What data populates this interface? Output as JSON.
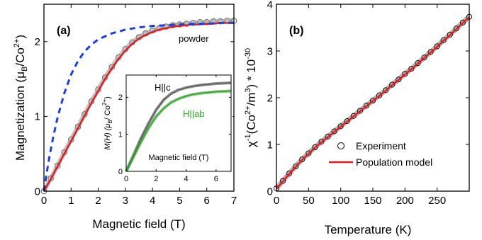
{
  "chart_data": [
    {
      "type": "line",
      "panel_label": "(a)",
      "xlabel": "Magnetic field (T)",
      "ylabel_main": "Magnetization (μ",
      "ylabel_sub1": "B",
      "ylabel_mid": "/Co",
      "ylabel_sup": "2+",
      "ylabel_end": ")",
      "annotation": "powder",
      "xlim": [
        0,
        7
      ],
      "ylim": [
        0,
        2.5
      ],
      "xticks": [
        0,
        1,
        2,
        3,
        4,
        5,
        6,
        7
      ],
      "yticks": [
        0,
        1,
        2
      ],
      "colors": {
        "experiment": "#555555",
        "model": "#e41a1c",
        "dashed": "#1f3fdc"
      },
      "series": [
        {
          "style": "open-circles",
          "x": [
            0,
            0.25,
            0.5,
            0.75,
            1.0,
            1.25,
            1.5,
            1.75,
            2.0,
            2.25,
            2.5,
            2.75,
            3.0,
            3.25,
            3.5,
            3.75,
            4.0,
            4.25,
            4.5,
            4.75,
            5.0,
            5.25,
            5.5,
            5.75,
            6.0,
            6.25,
            6.5,
            6.75,
            7.0
          ],
          "y": [
            0.0,
            0.17,
            0.34,
            0.52,
            0.69,
            0.86,
            1.03,
            1.2,
            1.36,
            1.52,
            1.66,
            1.79,
            1.9,
            1.99,
            2.06,
            2.11,
            2.15,
            2.18,
            2.2,
            2.22,
            2.23,
            2.24,
            2.25,
            2.26,
            2.26,
            2.27,
            2.27,
            2.28,
            2.28
          ]
        },
        {
          "style": "solid-red",
          "x": [
            0,
            0.25,
            0.5,
            0.75,
            1.0,
            1.25,
            1.5,
            1.75,
            2.0,
            2.25,
            2.5,
            2.75,
            3.0,
            3.25,
            3.5,
            3.75,
            4.0,
            4.25,
            4.5,
            4.75,
            5.0,
            5.25,
            5.5,
            5.75,
            6.0,
            6.25,
            6.5,
            6.75,
            7.0
          ],
          "y": [
            0.0,
            0.16,
            0.33,
            0.5,
            0.67,
            0.84,
            1.01,
            1.18,
            1.34,
            1.5,
            1.64,
            1.77,
            1.88,
            1.97,
            2.04,
            2.09,
            2.13,
            2.16,
            2.18,
            2.2,
            2.21,
            2.22,
            2.23,
            2.23,
            2.24,
            2.24,
            2.25,
            2.25,
            2.25
          ]
        },
        {
          "style": "dashed-blue",
          "x": [
            0,
            0.1,
            0.2,
            0.35,
            0.5,
            0.75,
            1.0,
            1.25,
            1.5,
            1.75,
            2.0,
            2.5,
            3.0,
            3.5,
            4.0,
            4.5,
            5.0,
            5.5,
            6.0,
            6.5,
            7.0
          ],
          "y": [
            0.0,
            0.24,
            0.46,
            0.74,
            0.98,
            1.31,
            1.56,
            1.74,
            1.87,
            1.96,
            2.03,
            2.11,
            2.16,
            2.19,
            2.21,
            2.22,
            2.23,
            2.24,
            2.24,
            2.25,
            2.25
          ]
        }
      ]
    },
    {
      "type": "line",
      "panel_label": "inset",
      "xlabel": "Magnetic field (T)",
      "ylabel_main": "M(H) (μ",
      "ylabel_sub1": "B",
      "ylabel_mid": "/ Co",
      "ylabel_sup": "2+",
      "ylabel_end": ")",
      "xlim": [
        0,
        7
      ],
      "ylim": [
        0,
        2.6
      ],
      "xticks": [
        0,
        2,
        4,
        6
      ],
      "yticks": [
        0,
        1,
        2
      ],
      "series": [
        {
          "name": "H||c",
          "color": "#555555",
          "x": [
            0,
            0.5,
            1.0,
            1.5,
            2.0,
            2.5,
            3.0,
            3.5,
            4.0,
            4.5,
            5.0,
            5.5,
            6.0,
            6.5,
            7.0
          ],
          "y": [
            0.0,
            0.45,
            0.9,
            1.3,
            1.66,
            1.93,
            2.1,
            2.2,
            2.26,
            2.3,
            2.33,
            2.35,
            2.37,
            2.38,
            2.39
          ]
        },
        {
          "name": "H||ab",
          "color": "#33a02c",
          "x": [
            0,
            0.5,
            1.0,
            1.5,
            2.0,
            2.5,
            3.0,
            3.5,
            4.0,
            4.5,
            5.0,
            5.5,
            6.0,
            6.5,
            7.0
          ],
          "y": [
            0.0,
            0.4,
            0.8,
            1.17,
            1.48,
            1.7,
            1.86,
            1.96,
            2.03,
            2.08,
            2.11,
            2.13,
            2.15,
            2.16,
            2.17
          ]
        }
      ]
    },
    {
      "type": "scatter",
      "panel_label": "(b)",
      "xlabel": "Temperature (K)",
      "ylabel_chi": "χ",
      "ylabel_sup1": "-1",
      "ylabel_mid": "(Co",
      "ylabel_sup2": "2+",
      "ylabel_mid2": "/m",
      "ylabel_sup3": "3",
      "ylabel_end": ") * 10",
      "ylabel_sup4": "-30",
      "xlim": [
        0,
        300
      ],
      "ylim": [
        0,
        4
      ],
      "xticks": [
        0,
        50,
        100,
        150,
        200,
        250
      ],
      "yticks": [
        0,
        1,
        2,
        3,
        4
      ],
      "legend": [
        "Experiment",
        "Population model"
      ],
      "legend_position": "lower-right",
      "colors": {
        "experiment": "#000000",
        "model": "#e41a1c"
      },
      "series": [
        {
          "name": "Experiment",
          "x": [
            0,
            10,
            20,
            30,
            40,
            50,
            60,
            70,
            80,
            90,
            100,
            110,
            120,
            130,
            140,
            150,
            160,
            170,
            180,
            190,
            200,
            210,
            220,
            230,
            240,
            250,
            260,
            270,
            280,
            290,
            300
          ],
          "y": [
            0.06,
            0.22,
            0.38,
            0.53,
            0.68,
            0.81,
            0.94,
            1.06,
            1.17,
            1.28,
            1.39,
            1.5,
            1.61,
            1.72,
            1.83,
            1.94,
            2.05,
            2.16,
            2.28,
            2.39,
            2.51,
            2.62,
            2.74,
            2.86,
            2.98,
            3.1,
            3.23,
            3.35,
            3.48,
            3.61,
            3.73
          ]
        },
        {
          "name": "Population model",
          "x": [
            0,
            10,
            20,
            30,
            40,
            50,
            60,
            70,
            80,
            90,
            100,
            110,
            120,
            130,
            140,
            150,
            160,
            170,
            180,
            190,
            200,
            210,
            220,
            230,
            240,
            250,
            260,
            270,
            280,
            290,
            300
          ],
          "y": [
            0.05,
            0.21,
            0.37,
            0.52,
            0.67,
            0.8,
            0.93,
            1.05,
            1.16,
            1.27,
            1.38,
            1.49,
            1.6,
            1.71,
            1.82,
            1.93,
            2.04,
            2.15,
            2.27,
            2.38,
            2.5,
            2.61,
            2.73,
            2.85,
            2.97,
            3.09,
            3.22,
            3.34,
            3.47,
            3.6,
            3.72
          ]
        }
      ]
    }
  ]
}
